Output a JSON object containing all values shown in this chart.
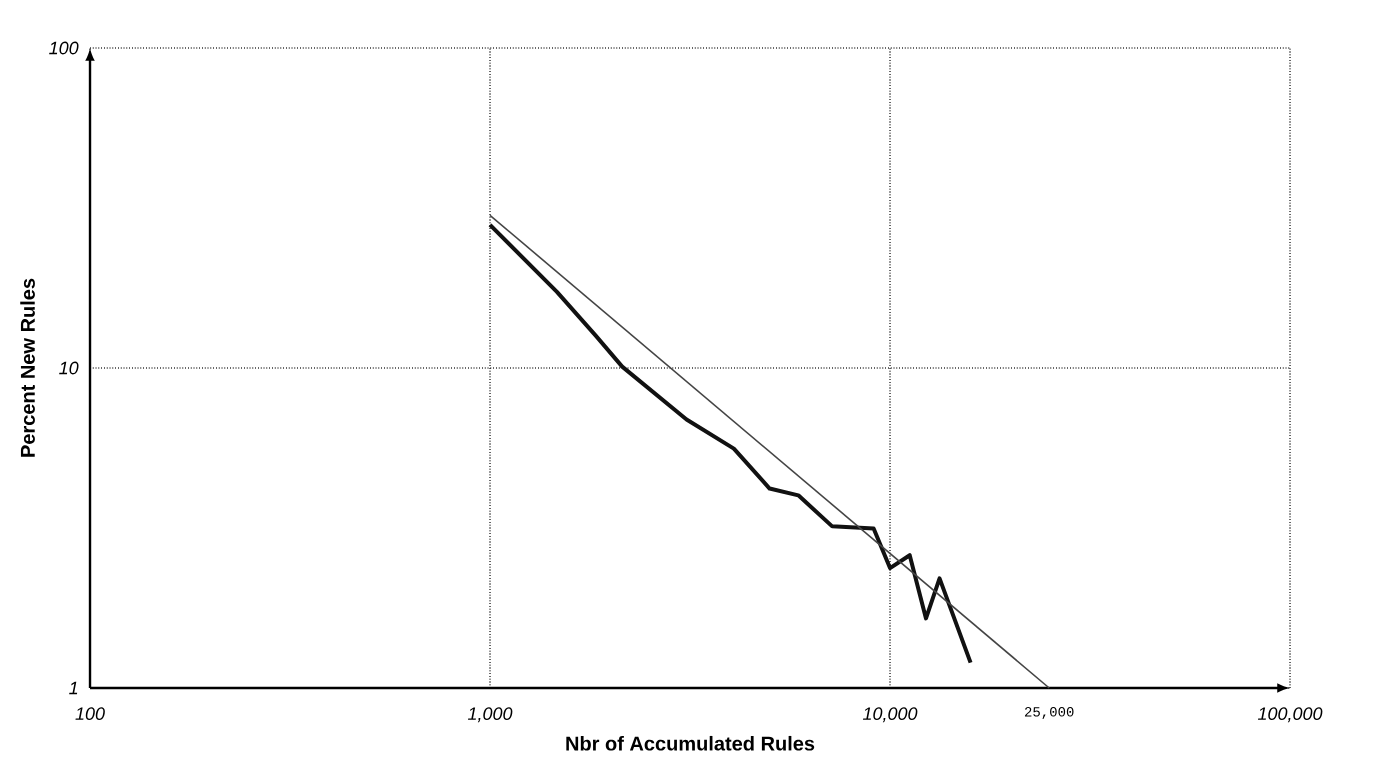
{
  "chart_data": {
    "type": "line",
    "xlabel": "Nbr of Accumulated Rules",
    "ylabel": "Percent New Rules",
    "log": "xy",
    "grid": true,
    "marker": "none",
    "xlim": [
      100,
      100000
    ],
    "ylim": [
      1,
      100
    ],
    "xticks": [
      100,
      {
        "value": 1000,
        "label": "1,000"
      },
      {
        "value": 10000,
        "label": "10,000"
      },
      {
        "value": 100000,
        "label": "100,000"
      }
    ],
    "yticks": [
      1,
      10,
      100
    ],
    "series": [
      {
        "color": "#111111",
        "x": [
          1000,
          1470,
          1840,
          2140,
          3100,
          4070,
          5000,
          5900,
          7170,
          9100,
          10000,
          11200,
          12300,
          13300,
          15900
        ],
        "values": [
          28,
          17.3,
          12.6,
          10.1,
          6.9,
          5.6,
          4.2,
          4.0,
          3.2,
          3.15,
          2.37,
          2.6,
          1.65,
          2.2,
          1.2
        ]
      },
      {
        "color": "#444444",
        "x": [
          1000,
          25000
        ],
        "values": [
          30,
          1
        ]
      }
    ],
    "annotations": [
      {
        "text": "25,000",
        "x": 25000,
        "y": 1
      }
    ]
  }
}
